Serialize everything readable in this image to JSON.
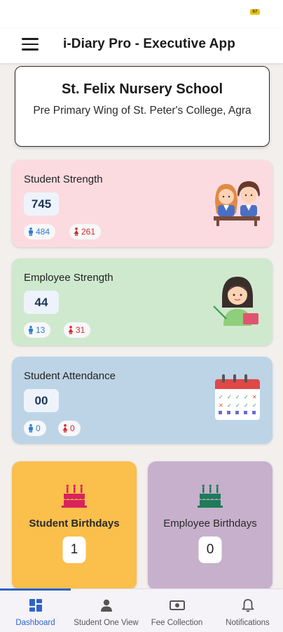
{
  "status_bar": {
    "battery_label": "67"
  },
  "app_bar": {
    "title": "i-Diary Pro - Executive App",
    "menu_icon": "hamburger-menu-icon"
  },
  "school": {
    "name": "St. Felix Nursery School",
    "subtitle": "Pre Primary Wing of St. Peter's College, Agra"
  },
  "cards": {
    "student_strength": {
      "title": "Student Strength",
      "value": "745",
      "male": "484",
      "female": "261",
      "color": "#fbdbe0",
      "illustration": "students-illustration"
    },
    "employee_strength": {
      "title": "Employee Strength",
      "value": "44",
      "male": "13",
      "female": "31",
      "color": "#cfe9cf",
      "illustration": "teacher-illustration"
    },
    "student_attendance": {
      "title": "Student Attendance",
      "value": "00",
      "male": "0",
      "female": "0",
      "color": "#bcd4e6",
      "illustration": "calendar-illustration"
    }
  },
  "birthdays": {
    "student": {
      "title": "Student Birthdays",
      "count": "1",
      "color": "#fbbf4c",
      "icon": "cake-icon"
    },
    "employee": {
      "title": "Employee Birthdays",
      "count": "0",
      "color": "#c7b0cc",
      "icon": "cake-icon"
    }
  },
  "colors": {
    "male": "#2f7bd0",
    "female": "#d12929",
    "accent": "#2f63c9"
  },
  "bottom_nav": {
    "items": [
      {
        "label": "Dashboard",
        "icon": "dashboard-grid-icon",
        "active": true
      },
      {
        "label": "Student One View",
        "icon": "person-icon",
        "active": false
      },
      {
        "label": "Fee Collection",
        "icon": "money-icon",
        "active": false
      },
      {
        "label": "Notifications",
        "icon": "bell-icon",
        "active": false
      }
    ]
  }
}
